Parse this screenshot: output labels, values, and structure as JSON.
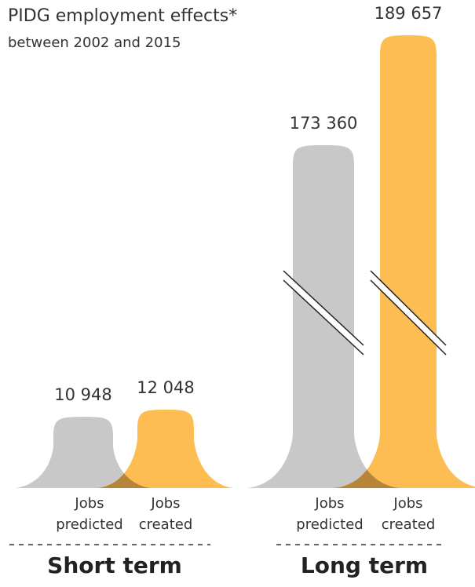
{
  "title": "PIDG employment effects*",
  "subtitle": "between 2002 and 2015",
  "colors": {
    "predicted": "#c8c8c8",
    "created": "#fdbd52",
    "overlap": "#b6853a",
    "text": "#333333"
  },
  "chart_data": {
    "type": "bar",
    "title": "PIDG employment effects*",
    "subtitle": "between 2002 and 2015",
    "axis_break": "broken bars for Long term values",
    "grid": false,
    "groups": [
      {
        "name": "Short term",
        "bars": [
          {
            "label_top": "Jobs",
            "label_bottom": "predicted",
            "value": 10948,
            "value_label": "10 948",
            "color": "predicted"
          },
          {
            "label_top": "Jobs",
            "label_bottom": "created",
            "value": 12048,
            "value_label": "12 048",
            "color": "created"
          }
        ]
      },
      {
        "name": "Long term",
        "bars": [
          {
            "label_top": "Jobs",
            "label_bottom": "predicted",
            "value": 173360,
            "value_label": "173 360",
            "color": "predicted"
          },
          {
            "label_top": "Jobs",
            "label_bottom": "created",
            "value": 189657,
            "value_label": "189 657",
            "color": "created"
          }
        ]
      }
    ]
  }
}
